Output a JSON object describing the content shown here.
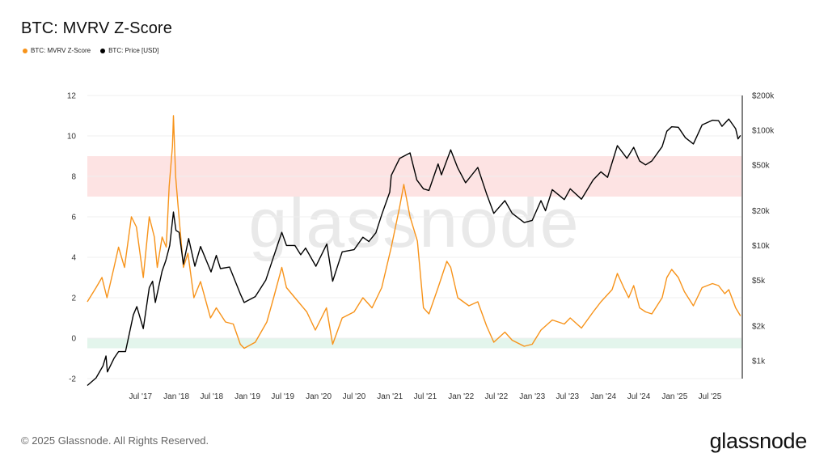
{
  "title": "BTC: MVRV Z-Score",
  "copyright": "© 2025 Glassnode. All Rights Reserved.",
  "brand": "glassnode",
  "watermark": "glassnode",
  "colors": {
    "zscore": "#f7931a",
    "price": "#000000",
    "red_band": "#fde3e3",
    "green_band": "#e3f5ec",
    "grid": "#efefef"
  },
  "chart_data": {
    "type": "line",
    "legend_position": "top-left",
    "x_tick_labels": [
      "Jul '17",
      "Jan '18",
      "Jul '18",
      "Jan '19",
      "Jul '19",
      "Jan '20",
      "Jul '20",
      "Jan '21",
      "Jul '21",
      "Jan '22",
      "Jul '22",
      "Jan '23",
      "Jul '23",
      "Jan '24",
      "Jul '24",
      "Jan '25",
      "Jul '25"
    ],
    "x_tick_dates": [
      "2017-07-01",
      "2018-01-01",
      "2018-07-01",
      "2019-01-01",
      "2019-07-01",
      "2020-01-01",
      "2020-07-01",
      "2021-01-01",
      "2021-07-01",
      "2022-01-01",
      "2022-07-01",
      "2023-01-01",
      "2023-07-01",
      "2024-01-01",
      "2024-07-01",
      "2025-01-01",
      "2025-07-01"
    ],
    "x_range": [
      "2016-10-01",
      "2025-12-10"
    ],
    "left_axis": {
      "ticks": [
        -2,
        0,
        2,
        4,
        6,
        8,
        10,
        12
      ],
      "range": [
        -2,
        12
      ]
    },
    "right_axis": {
      "scale": "log",
      "ticks": [
        1000,
        2000,
        5000,
        10000,
        20000,
        50000,
        100000,
        200000
      ],
      "tick_labels": [
        "$1k",
        "$2k",
        "$5k",
        "$10k",
        "$20k",
        "$50k",
        "$100k",
        "$200k"
      ],
      "range": [
        700,
        200000
      ]
    },
    "bands": [
      {
        "axis": "left",
        "from": 7,
        "to": 9,
        "color": "#fde3e3"
      },
      {
        "axis": "left",
        "from": -0.5,
        "to": 0,
        "color": "#e3f5ec"
      }
    ],
    "series": [
      {
        "name": "BTC: MVRV Z-Score",
        "axis": "left",
        "color": "#f7931a",
        "points": [
          [
            "2016-10-01",
            1.8
          ],
          [
            "2016-11-15",
            2.5
          ],
          [
            "2016-12-15",
            3.0
          ],
          [
            "2017-01-10",
            2.0
          ],
          [
            "2017-02-15",
            3.5
          ],
          [
            "2017-03-10",
            4.5
          ],
          [
            "2017-04-10",
            3.5
          ],
          [
            "2017-05-15",
            6.0
          ],
          [
            "2017-06-10",
            5.5
          ],
          [
            "2017-07-15",
            3.0
          ],
          [
            "2017-08-15",
            6.0
          ],
          [
            "2017-09-10",
            5.0
          ],
          [
            "2017-09-25",
            3.5
          ],
          [
            "2017-10-20",
            5.0
          ],
          [
            "2017-11-10",
            4.5
          ],
          [
            "2017-11-25",
            7.5
          ],
          [
            "2017-12-12",
            9.5
          ],
          [
            "2017-12-17",
            11.0
          ],
          [
            "2017-12-28",
            8.0
          ],
          [
            "2018-01-10",
            6.5
          ],
          [
            "2018-02-06",
            3.5
          ],
          [
            "2018-03-01",
            4.2
          ],
          [
            "2018-04-01",
            2.0
          ],
          [
            "2018-05-05",
            2.8
          ],
          [
            "2018-06-25",
            1.0
          ],
          [
            "2018-07-25",
            1.5
          ],
          [
            "2018-09-10",
            0.8
          ],
          [
            "2018-10-20",
            0.7
          ],
          [
            "2018-11-25",
            -0.3
          ],
          [
            "2018-12-15",
            -0.5
          ],
          [
            "2019-02-10",
            -0.2
          ],
          [
            "2019-04-10",
            0.8
          ],
          [
            "2019-05-15",
            2.0
          ],
          [
            "2019-06-26",
            3.5
          ],
          [
            "2019-07-20",
            2.5
          ],
          [
            "2019-09-01",
            2.0
          ],
          [
            "2019-11-01",
            1.3
          ],
          [
            "2019-12-15",
            0.4
          ],
          [
            "2020-02-10",
            1.5
          ],
          [
            "2020-03-13",
            -0.3
          ],
          [
            "2020-05-01",
            1.0
          ],
          [
            "2020-07-01",
            1.3
          ],
          [
            "2020-08-15",
            2.0
          ],
          [
            "2020-10-01",
            1.5
          ],
          [
            "2020-11-20",
            2.5
          ],
          [
            "2021-01-08",
            4.5
          ],
          [
            "2021-02-20",
            6.5
          ],
          [
            "2021-03-13",
            7.6
          ],
          [
            "2021-04-14",
            6.0
          ],
          [
            "2021-05-22",
            4.8
          ],
          [
            "2021-06-22",
            1.5
          ],
          [
            "2021-07-20",
            1.2
          ],
          [
            "2021-09-05",
            2.5
          ],
          [
            "2021-10-20",
            3.8
          ],
          [
            "2021-11-09",
            3.5
          ],
          [
            "2021-12-15",
            2.0
          ],
          [
            "2022-02-10",
            1.6
          ],
          [
            "2022-03-28",
            1.8
          ],
          [
            "2022-05-12",
            0.6
          ],
          [
            "2022-06-18",
            -0.2
          ],
          [
            "2022-08-14",
            0.3
          ],
          [
            "2022-09-20",
            -0.1
          ],
          [
            "2022-11-21",
            -0.4
          ],
          [
            "2023-01-01",
            -0.3
          ],
          [
            "2023-02-15",
            0.4
          ],
          [
            "2023-04-14",
            0.9
          ],
          [
            "2023-06-15",
            0.7
          ],
          [
            "2023-07-15",
            1.0
          ],
          [
            "2023-09-11",
            0.5
          ],
          [
            "2023-11-10",
            1.3
          ],
          [
            "2023-12-20",
            1.8
          ],
          [
            "2024-02-15",
            2.4
          ],
          [
            "2024-03-13",
            3.2
          ],
          [
            "2024-04-15",
            2.5
          ],
          [
            "2024-05-10",
            2.0
          ],
          [
            "2024-06-05",
            2.6
          ],
          [
            "2024-07-05",
            1.5
          ],
          [
            "2024-08-05",
            1.3
          ],
          [
            "2024-09-06",
            1.2
          ],
          [
            "2024-10-29",
            2.0
          ],
          [
            "2024-11-22",
            3.0
          ],
          [
            "2024-12-17",
            3.4
          ],
          [
            "2025-01-20",
            3.0
          ],
          [
            "2025-02-20",
            2.3
          ],
          [
            "2025-04-07",
            1.6
          ],
          [
            "2025-05-22",
            2.5
          ],
          [
            "2025-07-14",
            2.7
          ],
          [
            "2025-08-14",
            2.6
          ],
          [
            "2025-09-15",
            2.2
          ],
          [
            "2025-10-06",
            2.4
          ],
          [
            "2025-11-10",
            1.5
          ],
          [
            "2025-12-05",
            1.1
          ]
        ]
      },
      {
        "name": "BTC: Price [USD]",
        "axis": "right",
        "color": "#000000",
        "points": [
          [
            "2016-10-01",
            610
          ],
          [
            "2016-11-15",
            710
          ],
          [
            "2016-12-20",
            900
          ],
          [
            "2017-01-05",
            1100
          ],
          [
            "2017-01-12",
            800
          ],
          [
            "2017-02-15",
            1050
          ],
          [
            "2017-03-10",
            1200
          ],
          [
            "2017-04-15",
            1200
          ],
          [
            "2017-05-25",
            2500
          ],
          [
            "2017-06-12",
            2950
          ],
          [
            "2017-07-15",
            1900
          ],
          [
            "2017-08-15",
            4300
          ],
          [
            "2017-09-01",
            4900
          ],
          [
            "2017-09-15",
            3200
          ],
          [
            "2017-10-20",
            6000
          ],
          [
            "2017-11-08",
            7400
          ],
          [
            "2017-11-28",
            10000
          ],
          [
            "2017-12-17",
            19500
          ],
          [
            "2017-12-30",
            13500
          ],
          [
            "2018-01-15",
            13000
          ],
          [
            "2018-02-06",
            6900
          ],
          [
            "2018-03-05",
            11500
          ],
          [
            "2018-04-06",
            6600
          ],
          [
            "2018-05-05",
            9800
          ],
          [
            "2018-06-28",
            5900
          ],
          [
            "2018-07-25",
            8200
          ],
          [
            "2018-08-15",
            6300
          ],
          [
            "2018-10-01",
            6500
          ],
          [
            "2018-11-25",
            3800
          ],
          [
            "2018-12-15",
            3200
          ],
          [
            "2019-02-10",
            3600
          ],
          [
            "2019-04-05",
            5000
          ],
          [
            "2019-05-15",
            8000
          ],
          [
            "2019-06-26",
            13000
          ],
          [
            "2019-07-20",
            10000
          ],
          [
            "2019-09-01",
            10000
          ],
          [
            "2019-10-01",
            8300
          ],
          [
            "2019-10-26",
            9500
          ],
          [
            "2019-12-18",
            6600
          ],
          [
            "2020-02-12",
            10300
          ],
          [
            "2020-03-13",
            4900
          ],
          [
            "2020-05-01",
            8800
          ],
          [
            "2020-07-01",
            9200
          ],
          [
            "2020-08-15",
            11800
          ],
          [
            "2020-09-15",
            10800
          ],
          [
            "2020-10-21",
            12900
          ],
          [
            "2020-11-20",
            18500
          ],
          [
            "2020-12-31",
            29000
          ],
          [
            "2021-01-08",
            40500
          ],
          [
            "2021-02-20",
            57000
          ],
          [
            "2021-04-14",
            63500
          ],
          [
            "2021-05-19",
            37000
          ],
          [
            "2021-06-22",
            31000
          ],
          [
            "2021-07-20",
            30000
          ],
          [
            "2021-09-05",
            51000
          ],
          [
            "2021-09-22",
            41000
          ],
          [
            "2021-11-09",
            67500
          ],
          [
            "2021-12-15",
            47000
          ],
          [
            "2022-01-24",
            35000
          ],
          [
            "2022-03-28",
            47500
          ],
          [
            "2022-05-12",
            28000
          ],
          [
            "2022-06-18",
            19000
          ],
          [
            "2022-08-14",
            24500
          ],
          [
            "2022-09-20",
            19000
          ],
          [
            "2022-11-21",
            15800
          ],
          [
            "2023-01-01",
            16500
          ],
          [
            "2023-02-15",
            24500
          ],
          [
            "2023-03-10",
            20000
          ],
          [
            "2023-04-14",
            30500
          ],
          [
            "2023-06-15",
            25000
          ],
          [
            "2023-07-15",
            31000
          ],
          [
            "2023-09-11",
            25200
          ],
          [
            "2023-11-10",
            37000
          ],
          [
            "2023-12-20",
            43500
          ],
          [
            "2024-01-23",
            39000
          ],
          [
            "2024-03-13",
            73500
          ],
          [
            "2024-05-01",
            57000
          ],
          [
            "2024-06-05",
            71000
          ],
          [
            "2024-07-05",
            54000
          ],
          [
            "2024-08-05",
            50000
          ],
          [
            "2024-09-06",
            54000
          ],
          [
            "2024-10-29",
            72000
          ],
          [
            "2024-11-22",
            98000
          ],
          [
            "2024-12-17",
            107000
          ],
          [
            "2025-01-20",
            106000
          ],
          [
            "2025-02-25",
            86000
          ],
          [
            "2025-04-07",
            76000
          ],
          [
            "2025-05-22",
            111000
          ],
          [
            "2025-07-14",
            122000
          ],
          [
            "2025-08-14",
            121000
          ],
          [
            "2025-09-01",
            108000
          ],
          [
            "2025-10-06",
            125000
          ],
          [
            "2025-11-10",
            103000
          ],
          [
            "2025-11-22",
            84000
          ],
          [
            "2025-12-05",
            90000
          ]
        ]
      }
    ]
  }
}
